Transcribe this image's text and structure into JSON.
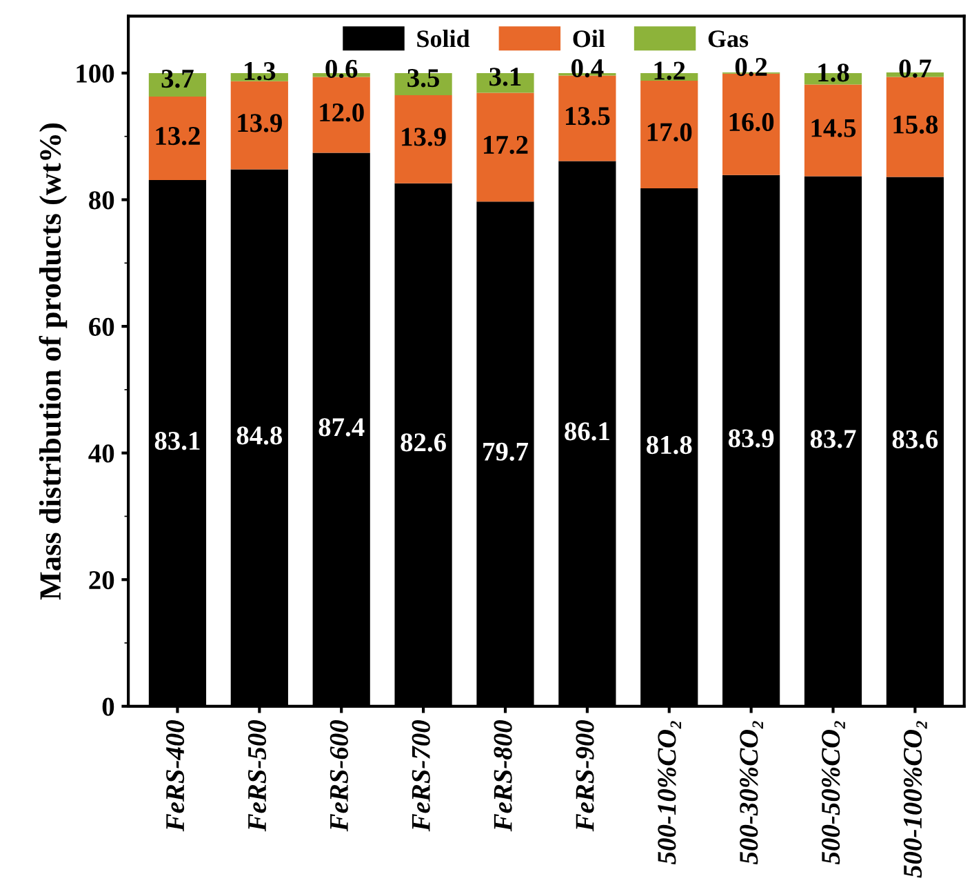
{
  "chart_data": {
    "type": "bar",
    "stacked": true,
    "ylabel": "Mass distribution of products (wt%)",
    "categories": [
      "FeRS-400",
      "FeRS-500",
      "FeRS-600",
      "FeRS-700",
      "FeRS-800",
      "FeRS-900",
      "500-10%CO₂",
      "500-30%CO₂",
      "500-50%CO₂",
      "500-100%CO₂"
    ],
    "series": [
      {
        "name": "Solid",
        "color": "#000000",
        "values": [
          83.1,
          84.8,
          87.4,
          82.6,
          79.7,
          86.1,
          81.8,
          83.9,
          83.7,
          83.6
        ],
        "value_labels": [
          "83.1",
          "84.8",
          "87.4",
          "82.6",
          "79.7",
          "86.1",
          "81.8",
          "83.9",
          "83.7",
          "83.6"
        ]
      },
      {
        "name": "Oil",
        "color": "#e8692a",
        "values": [
          13.2,
          13.9,
          12.0,
          13.9,
          17.2,
          13.5,
          17.0,
          16.0,
          14.5,
          15.8
        ],
        "value_labels": [
          "13.2",
          "13.9",
          "12.0",
          "13.9",
          "17.2",
          "13.5",
          "17.0",
          "16.0",
          "14.5",
          "15.8"
        ]
      },
      {
        "name": "Gas",
        "color": "#8db33a",
        "values": [
          3.7,
          1.3,
          0.6,
          3.5,
          3.1,
          0.4,
          1.2,
          0.2,
          1.8,
          0.7
        ],
        "value_labels": [
          "3.7",
          "1.3",
          "0.6",
          "3.5",
          "3.1",
          "0.4",
          "1.2",
          "0.2",
          "1.8",
          "0.7"
        ]
      }
    ],
    "ylim": [
      0,
      109
    ],
    "yticks": [
      0,
      20,
      40,
      60,
      80,
      100
    ],
    "grid": false,
    "legend": "top"
  }
}
